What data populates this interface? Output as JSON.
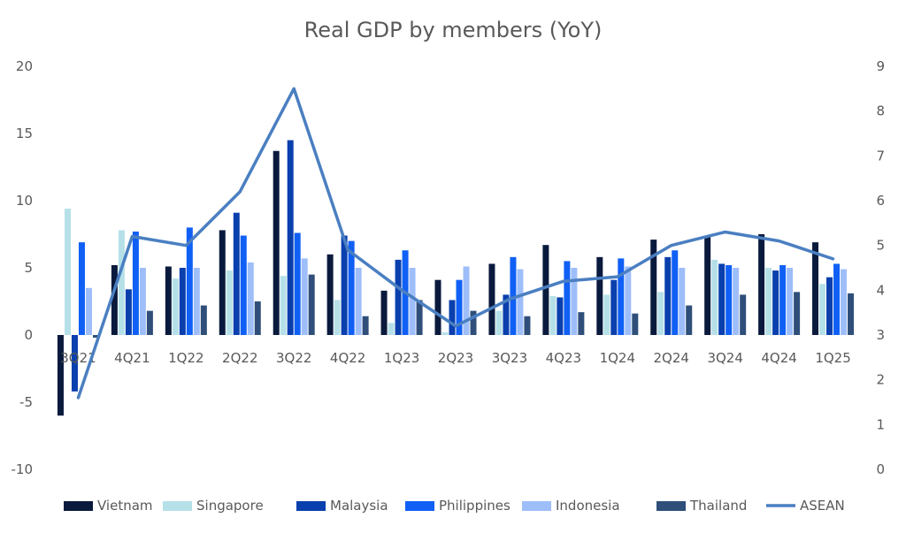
{
  "chart_data": {
    "type": "bar",
    "title": "Real GDP by members (YoY)",
    "categories": [
      "3Q21",
      "4Q21",
      "1Q22",
      "2Q22",
      "3Q22",
      "4Q22",
      "1Q23",
      "2Q23",
      "3Q23",
      "4Q23",
      "1Q24",
      "2Q24",
      "3Q24",
      "4Q24",
      "1Q25"
    ],
    "y_left": {
      "min": -10,
      "max": 20,
      "ticks": [
        -10,
        -5,
        0,
        5,
        10,
        15,
        20
      ]
    },
    "y_right": {
      "min": 0,
      "max": 9,
      "ticks": [
        0,
        1,
        2,
        3,
        4,
        5,
        6,
        7,
        8,
        9
      ]
    },
    "legend_position": "bottom",
    "grid": false,
    "series": [
      {
        "name": "Vietnam",
        "type": "bar",
        "axis": "left",
        "color": "#0a1a3d",
        "values": [
          -6.0,
          5.2,
          5.1,
          7.8,
          13.7,
          6.0,
          3.3,
          4.1,
          5.3,
          6.7,
          5.8,
          7.1,
          7.4,
          7.5,
          6.9
        ]
      },
      {
        "name": "Singapore",
        "type": "bar",
        "axis": "left",
        "color": "#b6e0e8",
        "values": [
          9.4,
          7.8,
          4.2,
          4.8,
          4.4,
          2.6,
          0.9,
          0.2,
          1.8,
          2.9,
          3.0,
          3.2,
          5.6,
          5.0,
          3.8
        ]
      },
      {
        "name": "Malaysia",
        "type": "bar",
        "axis": "left",
        "color": "#0a3fae",
        "values": [
          -4.2,
          3.4,
          5.0,
          9.1,
          14.5,
          7.4,
          5.6,
          2.6,
          3.0,
          2.8,
          4.1,
          5.8,
          5.3,
          4.8,
          4.3
        ]
      },
      {
        "name": "Philippines",
        "type": "bar",
        "axis": "left",
        "color": "#1060f5",
        "values": [
          6.9,
          7.7,
          8.0,
          7.4,
          7.6,
          7.0,
          6.3,
          4.1,
          5.8,
          5.5,
          5.7,
          6.3,
          5.2,
          5.2,
          5.3
        ]
      },
      {
        "name": "Indonesia",
        "type": "bar",
        "axis": "left",
        "color": "#9ebefa",
        "values": [
          3.5,
          5.0,
          5.0,
          5.4,
          5.7,
          5.0,
          5.0,
          5.1,
          4.9,
          5.0,
          5.1,
          5.0,
          5.0,
          5.0,
          4.9
        ]
      },
      {
        "name": "Thailand",
        "type": "bar",
        "axis": "left",
        "color": "#2f4f7a",
        "values": [
          -0.2,
          1.8,
          2.2,
          2.5,
          4.5,
          1.4,
          2.6,
          1.8,
          1.4,
          1.7,
          1.6,
          2.2,
          3.0,
          3.2,
          3.1
        ]
      },
      {
        "name": "ASEAN",
        "type": "line",
        "axis": "right",
        "color": "#4a7fc1",
        "values": [
          1.6,
          5.2,
          5.0,
          6.2,
          8.5,
          4.9,
          4.0,
          3.2,
          3.8,
          4.2,
          4.3,
          5.0,
          5.3,
          5.1,
          4.7
        ]
      }
    ]
  }
}
